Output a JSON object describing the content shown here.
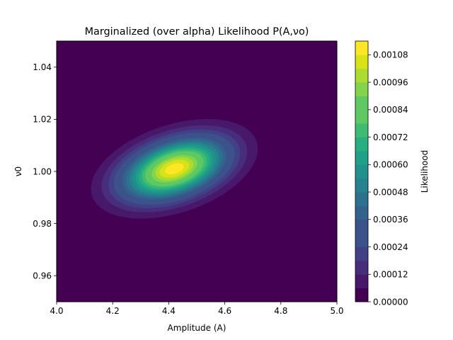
{
  "chart_data": {
    "type": "contour",
    "title": "Marginalized (over alpha) Likelihood P(A,νo)",
    "xlabel": "Amplitude (A)",
    "ylabel": "ν0",
    "xlim": [
      4.0,
      5.0
    ],
    "ylim": [
      0.95,
      1.05
    ],
    "x_ticks": [
      4.0,
      4.2,
      4.4,
      4.6,
      4.8,
      5.0
    ],
    "x_tick_labels": [
      "4.0",
      "4.2",
      "4.4",
      "4.6",
      "4.8",
      "5.0"
    ],
    "y_ticks": [
      0.96,
      0.98,
      1.0,
      1.02,
      1.04
    ],
    "y_tick_labels": [
      "0.96",
      "0.98",
      "1.00",
      "1.02",
      "1.04"
    ],
    "peak": {
      "amplitude": 4.42,
      "nu0": 1.001,
      "likelihood": 0.00112
    },
    "distribution": {
      "sigma_amplitude": 0.123,
      "sigma_nu0": 0.0079,
      "correlation": 0.4
    },
    "levels": [
      0.0,
      6e-05,
      0.00012,
      0.00018,
      0.00024,
      0.0003,
      0.00036,
      0.00042,
      0.00048,
      0.00054,
      0.0006,
      0.00066,
      0.00072,
      0.00078,
      0.00084,
      0.0009,
      0.00096,
      0.00102,
      0.00108,
      0.00114
    ],
    "colorbar": {
      "label": "Likelihood",
      "ticks": [
        0.0,
        0.00012,
        0.00024,
        0.00036,
        0.00048,
        0.0006,
        0.00072,
        0.00084,
        0.00096,
        0.00108
      ],
      "tick_labels": [
        "0.00000",
        "0.00012",
        "0.00024",
        "0.00036",
        "0.00048",
        "0.00060",
        "0.00072",
        "0.00084",
        "0.00096",
        "0.00108"
      ]
    },
    "colormap": [
      "#440154",
      "#48186a",
      "#472d7b",
      "#424086",
      "#3b528b",
      "#33638d",
      "#2c728e",
      "#26828e",
      "#21918c",
      "#1fa088",
      "#28ae80",
      "#3fbc73",
      "#5ec962",
      "#84d44b",
      "#addc30",
      "#d8e219",
      "#fde725"
    ],
    "grid": false
  }
}
